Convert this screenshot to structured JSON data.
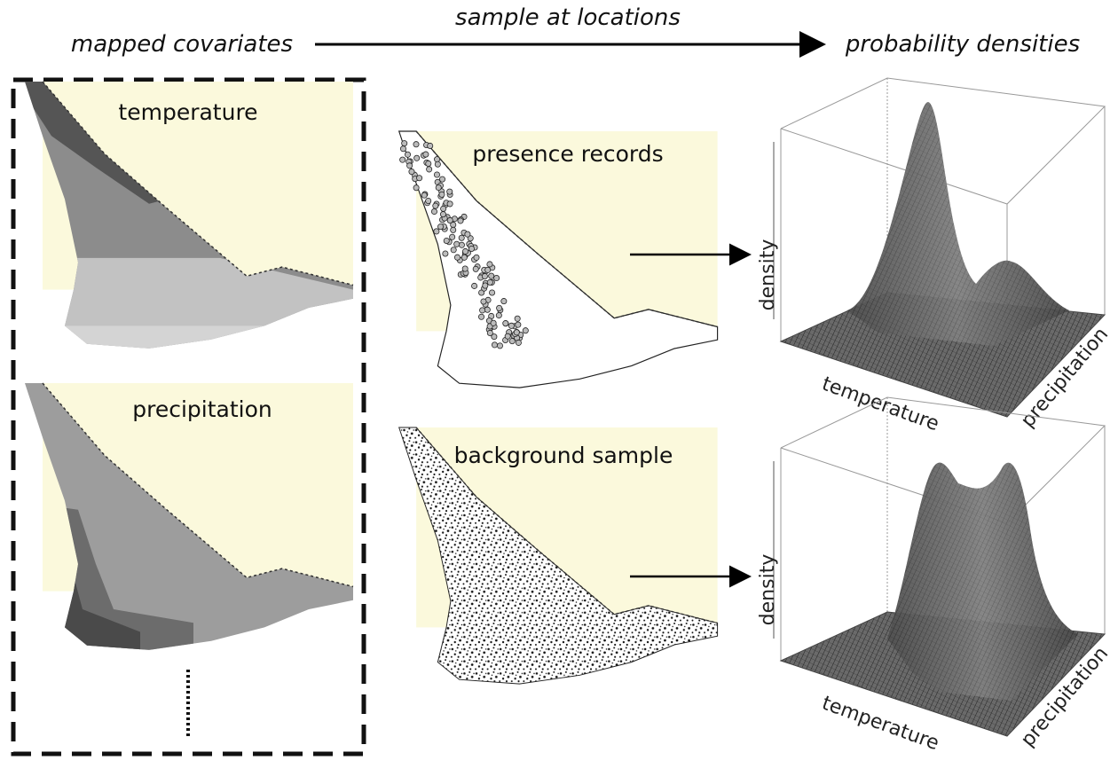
{
  "header": {
    "left": "mapped covariates",
    "middle": "sample at locations",
    "right": "probability densities"
  },
  "covariates": [
    {
      "label": "temperature"
    },
    {
      "label": "precipitation"
    }
  ],
  "samples": [
    {
      "label": "presence records"
    },
    {
      "label": "background sample"
    }
  ],
  "densities": [
    {
      "z_label": "density",
      "x_label": "temperature",
      "y_label": "precipitation"
    },
    {
      "z_label": "density",
      "x_label": "temperature",
      "y_label": "precipitation"
    }
  ]
}
